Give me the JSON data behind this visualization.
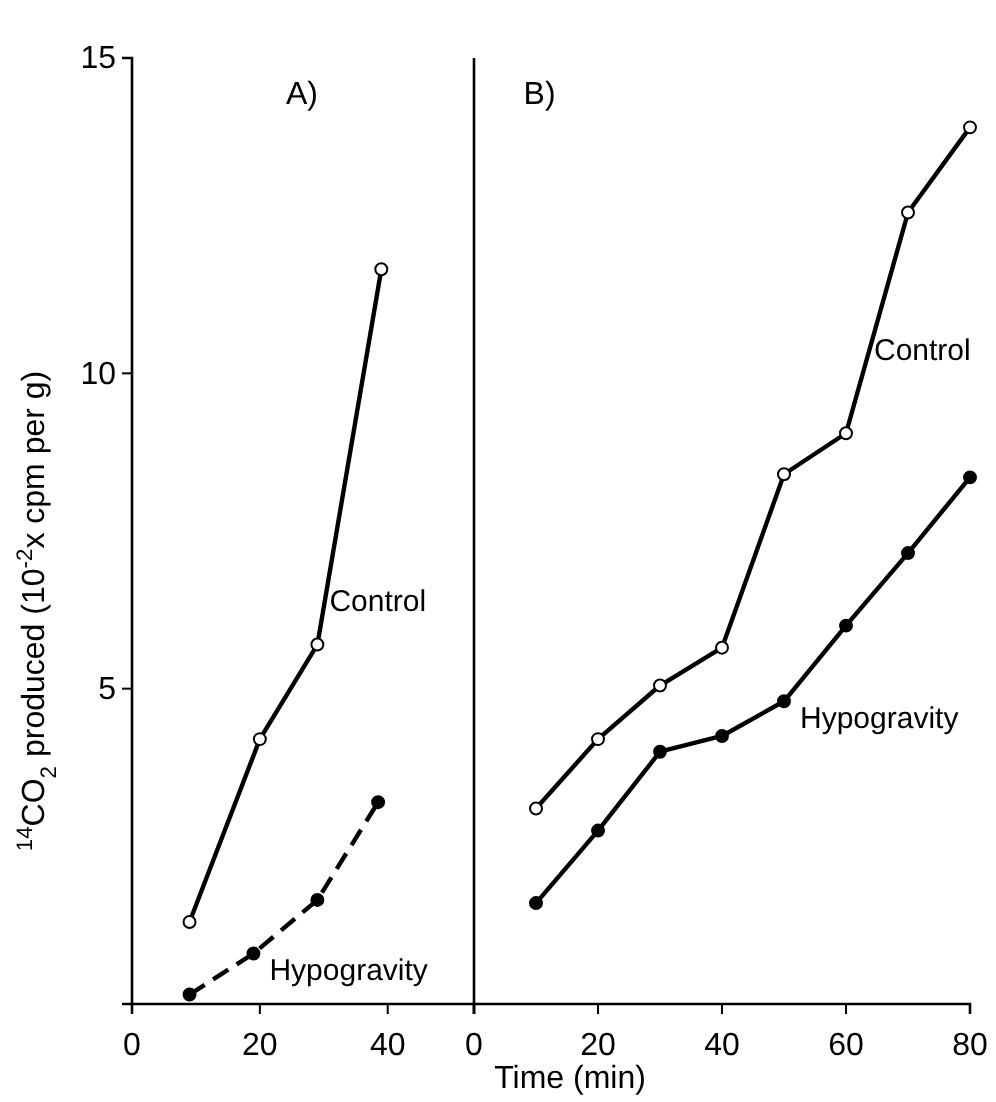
{
  "chart_data": [
    {
      "type": "line",
      "title": "A)",
      "xlabel": "Time (min)",
      "ylabel": "$^{14}$CO$_{2}$ produced (10$^{-2}$x cpm per g)",
      "xlim": [
        0,
        53.5
      ],
      "xticks": [
        0,
        20,
        40
      ],
      "ylim": [
        0,
        15
      ],
      "yticks": [
        5,
        10,
        15
      ],
      "marker": "circle",
      "series": [
        {
          "name": "Control",
          "color": "#000000",
          "line_style": "solid",
          "x": [
            9,
            20,
            29,
            39
          ],
          "values": [
            1.3,
            4.2,
            5.7,
            11.65
          ]
        },
        {
          "name": "Hypogravity",
          "color": "#000000",
          "line_style": "dashed",
          "x": [
            9,
            19,
            29,
            38.5
          ],
          "values": [
            0.15,
            0.8,
            1.65,
            3.2
          ]
        }
      ]
    },
    {
      "type": "line",
      "title": "B)",
      "xlim": [
        0,
        80
      ],
      "xticks": [
        0,
        20,
        40,
        60,
        80
      ],
      "ylim": [
        0,
        15
      ],
      "yticks": [
        5,
        10,
        15
      ],
      "tick_labels": "x",
      "marker": "circle",
      "series": [
        {
          "name": "Control",
          "color": "#000000",
          "line_style": "solid",
          "x": [
            10,
            20,
            30,
            40,
            50,
            60,
            70,
            80
          ],
          "values": [
            3.1,
            4.2,
            5.05,
            5.65,
            8.4,
            9.05,
            12.55,
            13.9
          ]
        },
        {
          "name": "Hypogravity",
          "color": "#000000",
          "line_style": "solid",
          "x": [
            10,
            20,
            30,
            40,
            50,
            60,
            70,
            80
          ],
          "values": [
            1.6,
            2.75,
            4.0,
            4.25,
            4.8,
            6.0,
            7.15,
            8.35
          ]
        }
      ]
    }
  ]
}
